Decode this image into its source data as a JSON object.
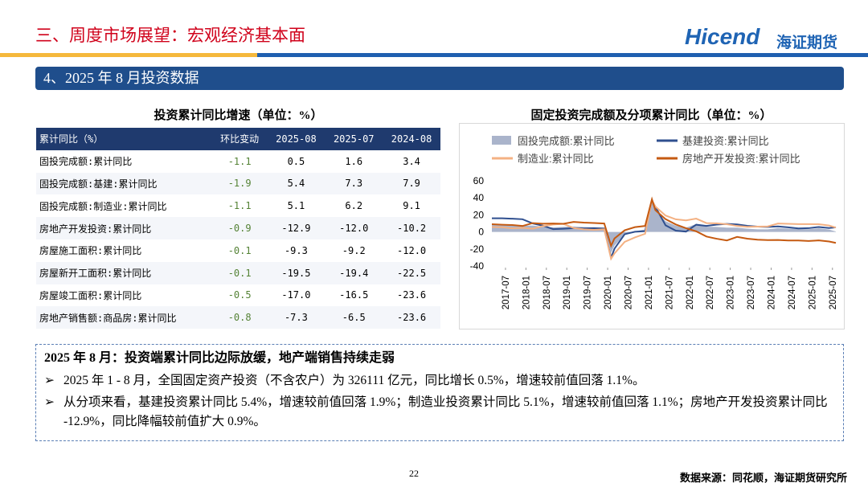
{
  "header": {
    "title": "三、周度市场展望：宏观经济基本面",
    "logo_en": "Hicend",
    "logo_cn": "海证期货"
  },
  "section_title": "4、2025 年 8 月投资数据",
  "table": {
    "title": "投资累计同比增速（单位：%）",
    "columns": [
      "累计同比（%）",
      "环比变动",
      "2025-08",
      "2025-07",
      "2024-08"
    ],
    "rows": [
      [
        "固投完成额:累计同比",
        "-1.1",
        "0.5",
        "1.6",
        "3.4"
      ],
      [
        "固投完成额:基建:累计同比",
        "-1.9",
        "5.4",
        "7.3",
        "7.9"
      ],
      [
        "固投完成额:制造业:累计同比",
        "-1.1",
        "5.1",
        "6.2",
        "9.1"
      ],
      [
        "房地产开发投资:累计同比",
        "-0.9",
        "-12.9",
        "-12.0",
        "-10.2"
      ],
      [
        "房屋施工面积:累计同比",
        "-0.1",
        "-9.3",
        "-9.2",
        "-12.0"
      ],
      [
        "房屋新开工面积:累计同比",
        "-0.1",
        "-19.5",
        "-19.4",
        "-22.5"
      ],
      [
        "房屋竣工面积:累计同比",
        "-0.5",
        "-17.0",
        "-16.5",
        "-23.6"
      ],
      [
        "房地产销售额:商品房:累计同比",
        "-0.8",
        "-7.3",
        "-6.5",
        "-23.6"
      ]
    ]
  },
  "chart_data": {
    "type": "line",
    "title": "固定投资完成额及分项累计同比（单位：%）",
    "x": [
      "2017-03",
      "2017-06",
      "2017-09",
      "2017-12",
      "2018-03",
      "2018-06",
      "2018-09",
      "2018-12",
      "2019-03",
      "2019-06",
      "2019-09",
      "2019-12",
      "2020-02",
      "2020-03",
      "2020-06",
      "2020-09",
      "2020-12",
      "2021-02",
      "2021-03",
      "2021-06",
      "2021-09",
      "2021-12",
      "2022-03",
      "2022-06",
      "2022-09",
      "2022-12",
      "2023-03",
      "2023-06",
      "2023-09",
      "2023-12",
      "2024-03",
      "2024-06",
      "2024-09",
      "2024-12",
      "2025-03",
      "2025-06",
      "2025-08"
    ],
    "xticks": [
      "2017-07",
      "2018-01",
      "2018-07",
      "2019-01",
      "2019-07",
      "2020-01",
      "2020-07",
      "2021-01",
      "2021-07",
      "2022-01",
      "2022-07",
      "2023-01",
      "2023-07",
      "2024-01",
      "2024-07",
      "2025-01",
      "2025-07"
    ],
    "ylim": [
      -40,
      60
    ],
    "yticks": [
      -40,
      -20,
      0,
      20,
      40,
      60
    ],
    "series": [
      {
        "name": "固投完成额:累计同比",
        "color": "#aab4cb",
        "area": true,
        "values": [
          9.2,
          8.6,
          7.5,
          7.2,
          7.5,
          6.0,
          5.4,
          5.9,
          6.3,
          5.8,
          5.4,
          5.4,
          -24.5,
          -16.1,
          -3.1,
          0.8,
          2.9,
          35.0,
          25.6,
          12.6,
          7.3,
          4.9,
          9.3,
          6.1,
          5.9,
          5.1,
          5.1,
          3.8,
          3.1,
          3.0,
          4.5,
          3.9,
          3.4,
          3.2,
          4.2,
          2.8,
          0.5
        ]
      },
      {
        "name": "基建投资:累计同比",
        "color": "#2f4f8f",
        "values": [
          16,
          16,
          15.5,
          14.9,
          10,
          7.3,
          3.3,
          3.8,
          4.4,
          4.1,
          4.5,
          3.8,
          -30.3,
          -19.7,
          -2.7,
          0.2,
          0.9,
          36.6,
          29.7,
          7.8,
          1.5,
          0.4,
          8.5,
          7.1,
          8.6,
          9.4,
          8.8,
          7.2,
          6.2,
          5.9,
          6.5,
          5.4,
          4.1,
          4.4,
          5.8,
          4.6,
          5.4
        ]
      },
      {
        "name": "制造业:累计同比",
        "color": "#f4b183",
        "values": [
          5.8,
          5.5,
          4.2,
          4.8,
          3.8,
          6.8,
          8.7,
          9.5,
          4.6,
          3.0,
          2.5,
          3.1,
          -31.5,
          -25.2,
          -11.7,
          -6.5,
          -2.2,
          37.3,
          29.8,
          19.2,
          14.8,
          13.5,
          15.6,
          10.4,
          10.1,
          9.1,
          7.0,
          6.0,
          6.2,
          6.5,
          9.9,
          9.5,
          9.2,
          9.2,
          9.1,
          7.5,
          5.1
        ]
      },
      {
        "name": "房地产开发投资:累计同比",
        "color": "#c55a11",
        "values": [
          9.1,
          8.5,
          8.1,
          7.0,
          10.4,
          9.7,
          9.9,
          9.5,
          11.8,
          10.9,
          10.5,
          9.9,
          -16.3,
          -7.7,
          1.9,
          5.6,
          7.0,
          38.3,
          25.6,
          15.0,
          8.8,
          4.4,
          0.7,
          -5.4,
          -8.0,
          -10.0,
          -5.8,
          -7.9,
          -9.1,
          -9.6,
          -9.5,
          -10.1,
          -10.1,
          -10.6,
          -9.9,
          -11.2,
          -12.9
        ]
      }
    ]
  },
  "notes": {
    "heading": "2025 年 8 月：投资端累计同比边际放缓，地产端销售持续走弱",
    "bullets": [
      "2025 年 1 - 8 月，全国固定资产投资（不含农户）为 326111 亿元，同比增长 0.5%，增速较前值回落 1.1%。",
      "从分项来看，基建投资累计同比 5.4%，增速较前值回落 1.9%；制造业投资累计同比 5.1%，增速较前值回落 1.1%；房地产开发投资累计同比 -12.9%，同比降幅较前值扩大 0.9%。"
    ]
  },
  "footer": {
    "page": "22",
    "source": "数据来源：同花顺，海证期货研究所"
  }
}
